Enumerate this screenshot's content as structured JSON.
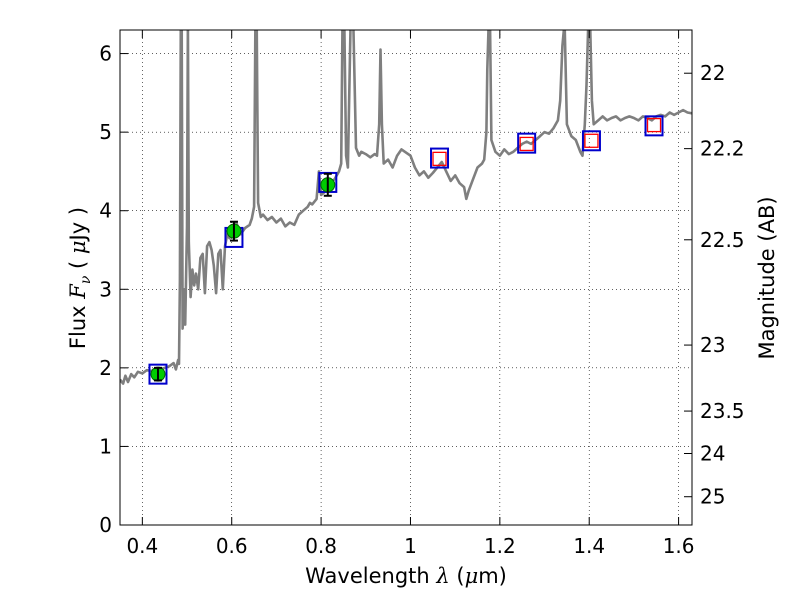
{
  "chart_data": {
    "type": "line",
    "xlabel": "Wavelength  λ (μm)",
    "ylabel": "Flux  F_ν  ( μJy )",
    "ylabel_parts": {
      "prefix": "Flux  ",
      "symbol": "F",
      "subscript": "ν",
      "open": "  ( ",
      "mu": "μ",
      "unit": "Jy )"
    },
    "xlabel_parts": {
      "prefix": "Wavelength  ",
      "symbol": "λ",
      "open": " (",
      "mu": "μ",
      "unit": "m)"
    },
    "y2label": "Magnitude (AB)",
    "xlim": [
      0.35,
      1.63
    ],
    "ylim": [
      0,
      6.3
    ],
    "grid": true,
    "x_ticks": [
      0.4,
      0.6,
      0.8,
      1.0,
      1.2,
      1.4,
      1.6
    ],
    "x_tick_labels": [
      "0.4",
      "0.6",
      "0.8",
      "1",
      "1.2",
      "1.4",
      "1.6"
    ],
    "y_ticks": [
      0,
      1,
      2,
      3,
      4,
      5,
      6
    ],
    "y_tick_labels": [
      "0",
      "1",
      "2",
      "3",
      "4",
      "5",
      "6"
    ],
    "y2_ticks": [
      {
        "label": "22",
        "flux": 5.75
      },
      {
        "label": "22.2",
        "flux": 4.79
      },
      {
        "label": "22.5",
        "flux": 3.63
      },
      {
        "label": "23",
        "flux": 2.29
      },
      {
        "label": "23.5",
        "flux": 1.45
      },
      {
        "label": "24",
        "flux": 0.91
      },
      {
        "label": "25",
        "flux": 0.36
      }
    ],
    "model_spectrum": {
      "color": "#7f7f7f",
      "points": [
        [
          0.35,
          1.85
        ],
        [
          0.357,
          1.8
        ],
        [
          0.362,
          1.9
        ],
        [
          0.368,
          1.82
        ],
        [
          0.375,
          1.92
        ],
        [
          0.382,
          1.88
        ],
        [
          0.39,
          1.95
        ],
        [
          0.4,
          1.93
        ],
        [
          0.41,
          1.97
        ],
        [
          0.42,
          1.96
        ],
        [
          0.43,
          1.99
        ],
        [
          0.44,
          1.98
        ],
        [
          0.45,
          2.0
        ],
        [
          0.46,
          2.02
        ],
        [
          0.47,
          2.06
        ],
        [
          0.475,
          1.98
        ],
        [
          0.48,
          2.1
        ],
        [
          0.482,
          2.05
        ],
        [
          0.484,
          3.1
        ],
        [
          0.486,
          6.4
        ],
        [
          0.488,
          6.4
        ],
        [
          0.49,
          2.5
        ],
        [
          0.492,
          2.7
        ],
        [
          0.494,
          3.0
        ],
        [
          0.496,
          2.55
        ],
        [
          0.5,
          3.8
        ],
        [
          0.502,
          6.4
        ],
        [
          0.504,
          3.6
        ],
        [
          0.508,
          2.9
        ],
        [
          0.512,
          3.25
        ],
        [
          0.516,
          3.05
        ],
        [
          0.52,
          3.2
        ],
        [
          0.525,
          3.0
        ],
        [
          0.53,
          3.4
        ],
        [
          0.535,
          3.45
        ],
        [
          0.54,
          2.95
        ],
        [
          0.545,
          3.55
        ],
        [
          0.55,
          3.6
        ],
        [
          0.555,
          3.5
        ],
        [
          0.56,
          3.3
        ],
        [
          0.565,
          2.95
        ],
        [
          0.57,
          3.45
        ],
        [
          0.575,
          3.5
        ],
        [
          0.58,
          3.0
        ],
        [
          0.585,
          3.55
        ],
        [
          0.59,
          3.7
        ],
        [
          0.595,
          3.65
        ],
        [
          0.6,
          3.8
        ],
        [
          0.61,
          3.85
        ],
        [
          0.62,
          3.7
        ],
        [
          0.63,
          3.78
        ],
        [
          0.64,
          3.82
        ],
        [
          0.645,
          3.9
        ],
        [
          0.65,
          4.05
        ],
        [
          0.653,
          6.4
        ],
        [
          0.656,
          6.4
        ],
        [
          0.659,
          4.1
        ],
        [
          0.665,
          3.92
        ],
        [
          0.67,
          3.95
        ],
        [
          0.68,
          3.88
        ],
        [
          0.69,
          3.92
        ],
        [
          0.7,
          3.85
        ],
        [
          0.71,
          3.9
        ],
        [
          0.72,
          3.8
        ],
        [
          0.73,
          3.85
        ],
        [
          0.74,
          3.82
        ],
        [
          0.75,
          3.95
        ],
        [
          0.76,
          4.0
        ],
        [
          0.77,
          4.05
        ],
        [
          0.775,
          4.1
        ],
        [
          0.78,
          4.08
        ],
        [
          0.79,
          4.15
        ],
        [
          0.795,
          4.5
        ],
        [
          0.8,
          4.2
        ],
        [
          0.81,
          4.25
        ],
        [
          0.815,
          4.3
        ],
        [
          0.82,
          4.35
        ],
        [
          0.83,
          4.4
        ],
        [
          0.84,
          4.5
        ],
        [
          0.845,
          4.6
        ],
        [
          0.848,
          6.4
        ],
        [
          0.852,
          6.4
        ],
        [
          0.856,
          4.7
        ],
        [
          0.86,
          4.55
        ],
        [
          0.866,
          6.4
        ],
        [
          0.872,
          6.4
        ],
        [
          0.878,
          4.8
        ],
        [
          0.885,
          4.7
        ],
        [
          0.89,
          4.75
        ],
        [
          0.9,
          4.72
        ],
        [
          0.91,
          4.68
        ],
        [
          0.92,
          4.72
        ],
        [
          0.925,
          4.7
        ],
        [
          0.93,
          5.1
        ],
        [
          0.933,
          6.05
        ],
        [
          0.936,
          5.1
        ],
        [
          0.94,
          4.6
        ],
        [
          0.95,
          4.65
        ],
        [
          0.96,
          4.55
        ],
        [
          0.97,
          4.7
        ],
        [
          0.98,
          4.78
        ],
        [
          0.99,
          4.74
        ],
        [
          1.0,
          4.7
        ],
        [
          1.01,
          4.55
        ],
        [
          1.02,
          4.45
        ],
        [
          1.03,
          4.5
        ],
        [
          1.04,
          4.42
        ],
        [
          1.05,
          4.48
        ],
        [
          1.06,
          4.55
        ],
        [
          1.07,
          4.62
        ],
        [
          1.08,
          4.5
        ],
        [
          1.09,
          4.38
        ],
        [
          1.1,
          4.45
        ],
        [
          1.11,
          4.35
        ],
        [
          1.12,
          4.3
        ],
        [
          1.125,
          4.15
        ],
        [
          1.13,
          4.25
        ],
        [
          1.14,
          4.4
        ],
        [
          1.15,
          4.55
        ],
        [
          1.16,
          4.6
        ],
        [
          1.165,
          4.65
        ],
        [
          1.17,
          5.0
        ],
        [
          1.172,
          5.8
        ],
        [
          1.175,
          6.4
        ],
        [
          1.178,
          6.4
        ],
        [
          1.181,
          4.9
        ],
        [
          1.19,
          4.75
        ],
        [
          1.2,
          4.7
        ],
        [
          1.21,
          4.78
        ],
        [
          1.22,
          4.72
        ],
        [
          1.23,
          4.75
        ],
        [
          1.24,
          4.8
        ],
        [
          1.25,
          4.85
        ],
        [
          1.26,
          4.88
        ],
        [
          1.27,
          4.85
        ],
        [
          1.28,
          4.9
        ],
        [
          1.29,
          4.95
        ],
        [
          1.3,
          5.0
        ],
        [
          1.31,
          4.98
        ],
        [
          1.32,
          5.05
        ],
        [
          1.33,
          5.15
        ],
        [
          1.335,
          5.4
        ],
        [
          1.34,
          6.1
        ],
        [
          1.345,
          6.4
        ],
        [
          1.35,
          5.1
        ],
        [
          1.36,
          4.95
        ],
        [
          1.37,
          4.9
        ],
        [
          1.38,
          4.75
        ],
        [
          1.385,
          4.7
        ],
        [
          1.39,
          5.1
        ],
        [
          1.394,
          5.6
        ],
        [
          1.398,
          6.4
        ],
        [
          1.402,
          6.4
        ],
        [
          1.406,
          5.4
        ],
        [
          1.41,
          5.1
        ],
        [
          1.42,
          5.15
        ],
        [
          1.43,
          5.2
        ],
        [
          1.44,
          5.15
        ],
        [
          1.45,
          5.18
        ],
        [
          1.46,
          5.2
        ],
        [
          1.47,
          5.15
        ],
        [
          1.48,
          5.18
        ],
        [
          1.49,
          5.2
        ],
        [
          1.5,
          5.18
        ],
        [
          1.51,
          5.15
        ],
        [
          1.52,
          5.2
        ],
        [
          1.53,
          5.18
        ],
        [
          1.54,
          5.15
        ],
        [
          1.55,
          5.2
        ],
        [
          1.56,
          5.22
        ],
        [
          1.57,
          5.2
        ],
        [
          1.58,
          5.25
        ],
        [
          1.59,
          5.22
        ],
        [
          1.6,
          5.25
        ],
        [
          1.61,
          5.28
        ],
        [
          1.62,
          5.25
        ],
        [
          1.63,
          5.24
        ]
      ]
    },
    "model_photometry": {
      "marker": "open-square",
      "color": "#0000cc",
      "points": [
        [
          0.435,
          1.92
        ],
        [
          0.605,
          3.66
        ],
        [
          0.815,
          4.36
        ],
        [
          1.065,
          4.67
        ],
        [
          1.26,
          4.86
        ],
        [
          1.405,
          4.89
        ],
        [
          1.545,
          5.08
        ]
      ]
    },
    "observed_detections": {
      "marker": "filled-circle",
      "color": "#00cc00",
      "points": [
        {
          "x": 0.435,
          "y": 1.92,
          "err": 0.08
        },
        {
          "x": 0.605,
          "y": 3.74,
          "err": 0.12
        },
        {
          "x": 0.815,
          "y": 4.33,
          "err": 0.14
        }
      ]
    },
    "observed_other": {
      "marker": "open-square",
      "color": "#ff0000",
      "points": [
        [
          1.065,
          4.66
        ],
        [
          1.26,
          4.85
        ],
        [
          1.405,
          4.89
        ],
        [
          1.545,
          5.09
        ]
      ]
    }
  }
}
